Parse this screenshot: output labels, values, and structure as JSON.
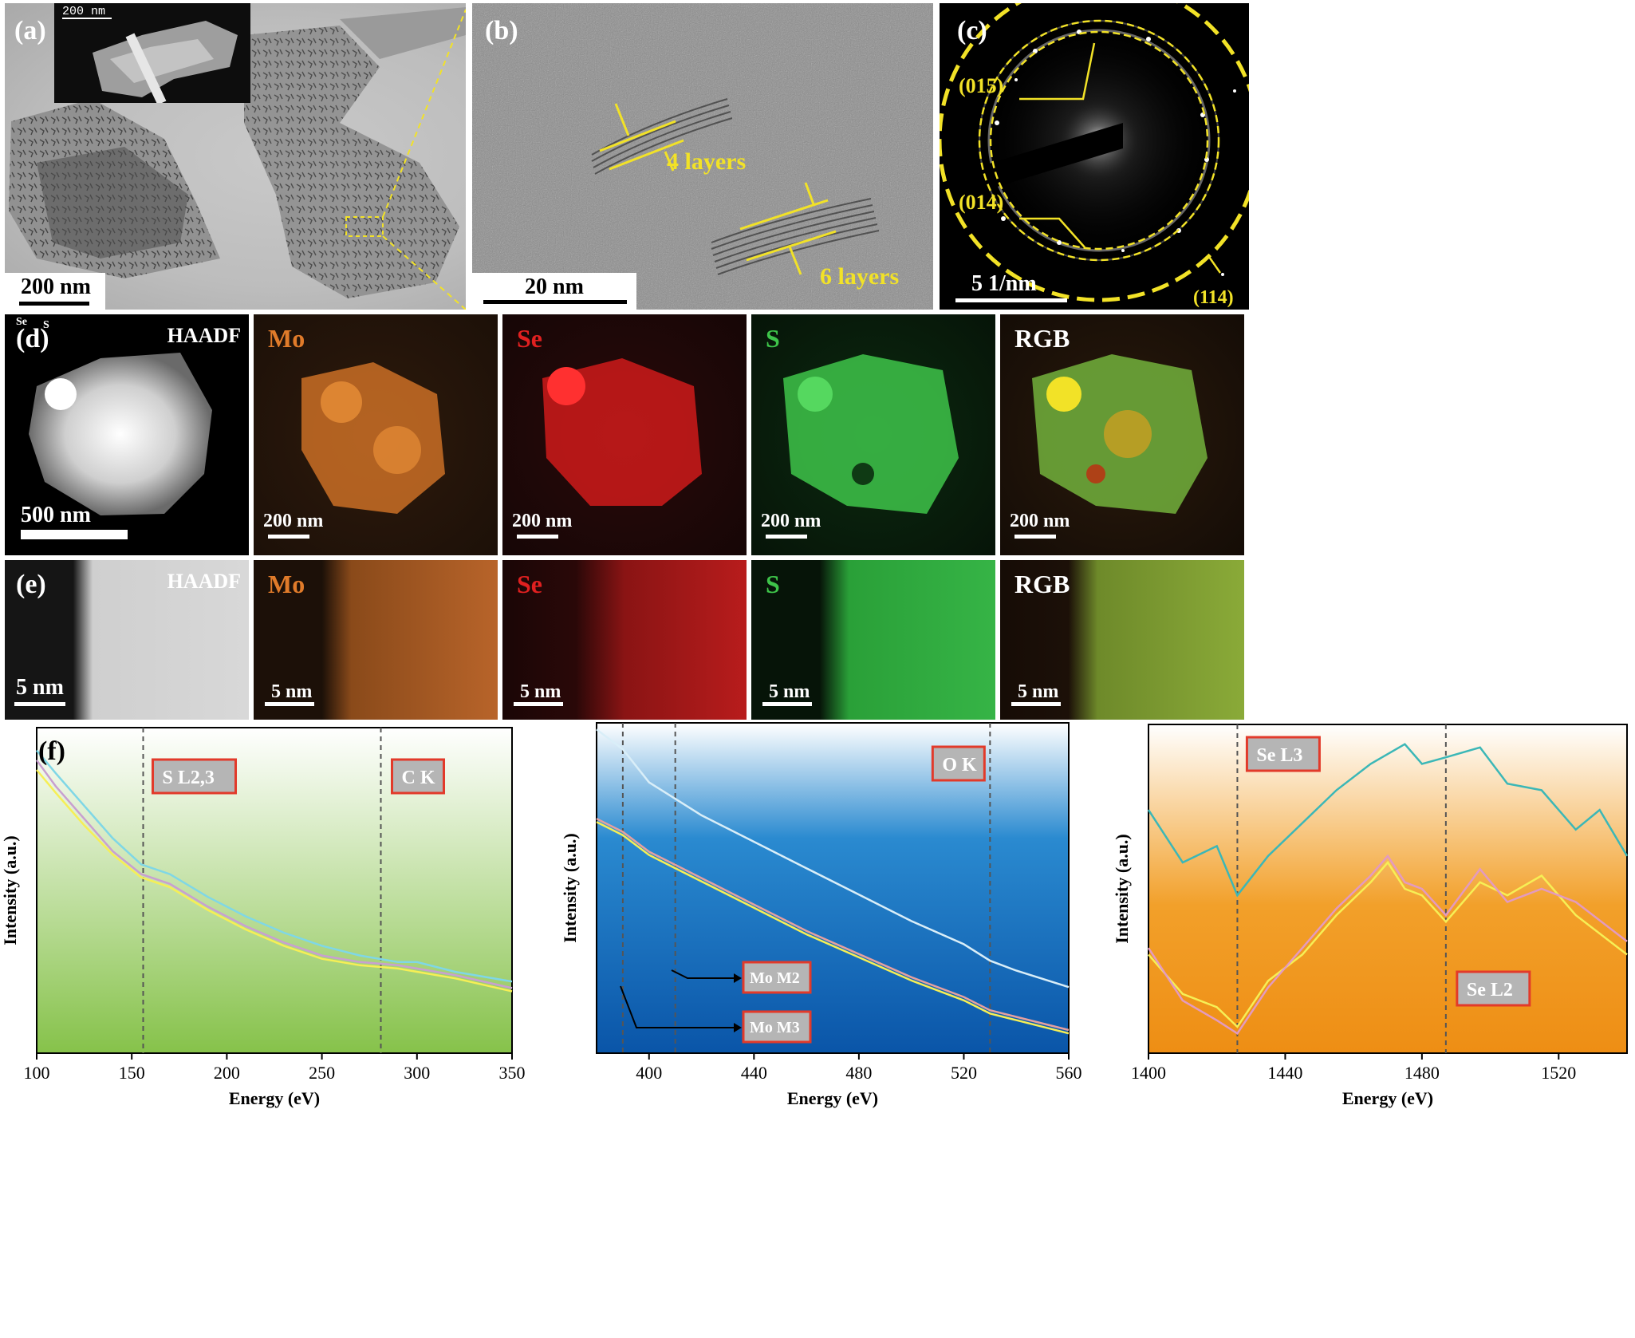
{
  "row1": {
    "a": {
      "label": "(a)",
      "scale": "200 nm",
      "inset_scale": "200 nm"
    },
    "b": {
      "label": "(b)",
      "scale": "20 nm",
      "layers_a": "4 layers",
      "layers_b": "6 layers"
    },
    "c": {
      "label": "(c)",
      "scale": "5 1/nm",
      "ring1": "(015)",
      "ring2": "(014)",
      "ring3": "(114)"
    }
  },
  "row_d": {
    "label": "(d)",
    "corner_small": [
      "Se",
      "S"
    ],
    "panels": [
      {
        "title": "HAADF",
        "scale": "500 nm"
      },
      {
        "title": "Mo",
        "scale": "200 nm"
      },
      {
        "title": "Se",
        "scale": "200 nm"
      },
      {
        "title": "S",
        "scale": "200 nm"
      },
      {
        "title": "RGB",
        "scale": "200 nm"
      }
    ]
  },
  "row_e": {
    "label": "(e)",
    "panels": [
      {
        "title": "HAADF",
        "scale": "5 nm"
      },
      {
        "title": "Mo",
        "scale": "5 nm"
      },
      {
        "title": "Se",
        "scale": "5 nm"
      },
      {
        "title": "S",
        "scale": "5 nm"
      },
      {
        "title": "RGB",
        "scale": "5 nm"
      }
    ]
  },
  "colors": {
    "mo": "#e07b2a",
    "se": "#e02020",
    "s": "#3ec44a",
    "yellow": "#f2e227"
  },
  "chart_data": [
    {
      "type": "line",
      "panel_label": "(f)",
      "xlabel": "Energy (eV)",
      "ylabel": "Intensity (a.u.)",
      "xlim": [
        100,
        350
      ],
      "xticks": [
        100,
        150,
        200,
        250,
        300,
        350
      ],
      "edges": [
        {
          "x": 156,
          "label": "S L2,3"
        },
        {
          "x": 281,
          "label": "C K"
        }
      ],
      "series": [
        {
          "color": "#7fd7e6",
          "x": [
            100,
            110,
            125,
            140,
            155,
            170,
            190,
            210,
            230,
            250,
            270,
            290,
            300,
            320,
            350
          ],
          "y": [
            0.93,
            0.86,
            0.76,
            0.66,
            0.58,
            0.55,
            0.48,
            0.42,
            0.37,
            0.33,
            0.3,
            0.28,
            0.28,
            0.25,
            0.22
          ]
        },
        {
          "color": "#c8a0d0",
          "x": [
            100,
            110,
            125,
            140,
            155,
            170,
            190,
            210,
            230,
            250,
            270,
            290,
            300,
            320,
            350
          ],
          "y": [
            0.9,
            0.82,
            0.72,
            0.62,
            0.55,
            0.52,
            0.45,
            0.39,
            0.34,
            0.3,
            0.28,
            0.27,
            0.26,
            0.24,
            0.2
          ]
        },
        {
          "color": "#f6ef55",
          "x": [
            100,
            110,
            125,
            140,
            155,
            170,
            190,
            210,
            230,
            250,
            270,
            290,
            300,
            320,
            350
          ],
          "y": [
            0.87,
            0.8,
            0.7,
            0.61,
            0.54,
            0.51,
            0.44,
            0.38,
            0.33,
            0.29,
            0.27,
            0.26,
            0.25,
            0.23,
            0.19
          ]
        }
      ]
    },
    {
      "type": "line",
      "xlabel": "Energy (eV)",
      "ylabel": "Intensity (a.u.)",
      "xlim": [
        380,
        560
      ],
      "xticks": [
        400,
        440,
        480,
        520,
        560
      ],
      "edges": [
        {
          "x": 390,
          "label": ""
        },
        {
          "x": 410,
          "label": ""
        },
        {
          "x": 530,
          "label": "O K"
        }
      ],
      "annotations": [
        "Mo M2",
        "Mo M3"
      ],
      "series": [
        {
          "color": "#d9eef8",
          "x": [
            380,
            390,
            400,
            410,
            420,
            440,
            460,
            480,
            500,
            520,
            530,
            540,
            560
          ],
          "y": [
            0.98,
            0.92,
            0.82,
            0.77,
            0.72,
            0.64,
            0.56,
            0.48,
            0.4,
            0.33,
            0.28,
            0.25,
            0.2
          ]
        },
        {
          "color": "#f6ef55",
          "x": [
            380,
            390,
            400,
            410,
            420,
            440,
            460,
            480,
            500,
            520,
            530,
            540,
            560
          ],
          "y": [
            0.7,
            0.66,
            0.6,
            0.56,
            0.52,
            0.44,
            0.36,
            0.29,
            0.22,
            0.16,
            0.12,
            0.1,
            0.06
          ]
        },
        {
          "color": "#e4a0a0",
          "x": [
            380,
            390,
            400,
            410,
            420,
            440,
            460,
            480,
            500,
            520,
            530,
            540,
            560
          ],
          "y": [
            0.71,
            0.67,
            0.61,
            0.57,
            0.53,
            0.45,
            0.37,
            0.3,
            0.23,
            0.17,
            0.13,
            0.11,
            0.07
          ]
        }
      ]
    },
    {
      "type": "line",
      "xlabel": "Energy (eV)",
      "ylabel": "Intensity (a.u.)",
      "xlim": [
        1400,
        1540
      ],
      "xticks": [
        1400,
        1440,
        1480,
        1520
      ],
      "edges": [
        {
          "x": 1426,
          "label": "Se L3"
        },
        {
          "x": 1487,
          "label": "Se L2"
        }
      ],
      "series": [
        {
          "color": "#3bb7b7",
          "x": [
            1400,
            1410,
            1420,
            1426,
            1435,
            1445,
            1455,
            1465,
            1475,
            1480,
            1487,
            1497,
            1505,
            1515,
            1525,
            1532,
            1540
          ],
          "y": [
            0.74,
            0.58,
            0.63,
            0.48,
            0.6,
            0.7,
            0.8,
            0.88,
            0.94,
            0.88,
            0.9,
            0.93,
            0.82,
            0.8,
            0.68,
            0.74,
            0.6
          ]
        },
        {
          "color": "#f6ef55",
          "x": [
            1400,
            1410,
            1420,
            1426,
            1435,
            1445,
            1455,
            1465,
            1470,
            1475,
            1480,
            1487,
            1497,
            1505,
            1515,
            1525,
            1540
          ],
          "y": [
            0.3,
            0.18,
            0.14,
            0.08,
            0.22,
            0.3,
            0.42,
            0.52,
            0.58,
            0.5,
            0.48,
            0.4,
            0.52,
            0.48,
            0.54,
            0.42,
            0.3
          ]
        },
        {
          "color": "#e39ac0",
          "x": [
            1400,
            1410,
            1420,
            1426,
            1435,
            1445,
            1455,
            1465,
            1470,
            1475,
            1480,
            1487,
            1497,
            1505,
            1515,
            1525,
            1540
          ],
          "y": [
            0.32,
            0.16,
            0.1,
            0.06,
            0.2,
            0.32,
            0.44,
            0.54,
            0.6,
            0.52,
            0.5,
            0.42,
            0.56,
            0.46,
            0.5,
            0.46,
            0.34
          ]
        }
      ]
    }
  ]
}
